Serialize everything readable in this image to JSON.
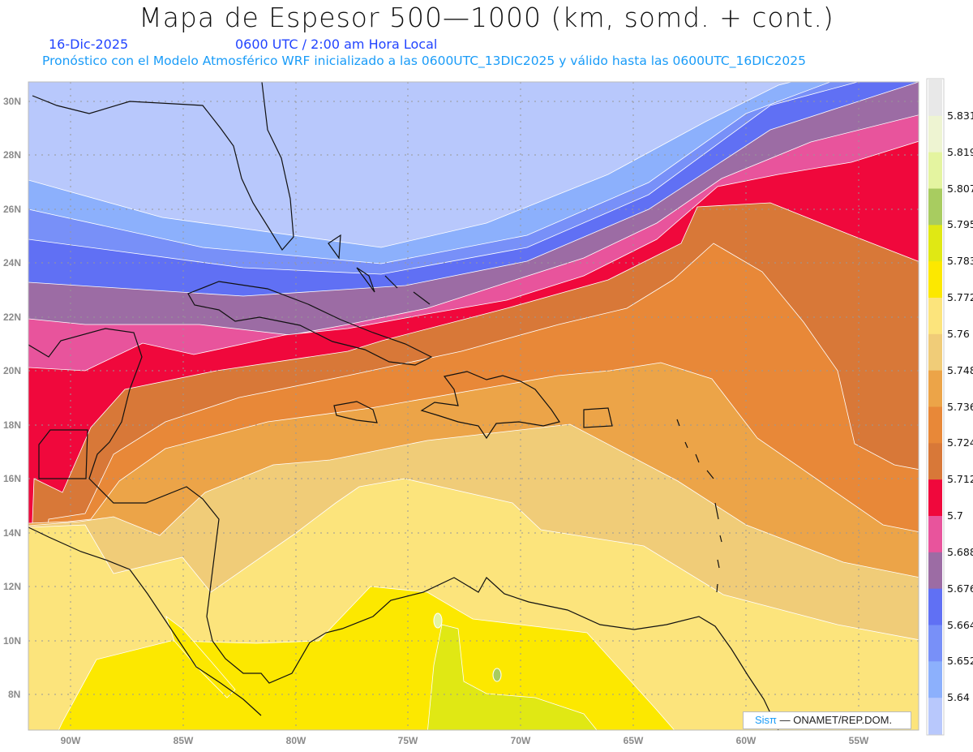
{
  "header": {
    "title": "Mapa de Espesor 500—1000 (km, somd. + cont.)",
    "date": "16-Dic-2025",
    "time": "0600 UTC / 2:00 am Hora Local",
    "forecast_info": "Pronóstico con el Modelo Atmosférico WRF inicializado a las 0600UTC_13DIC2025 y válido hasta las  0600UTC_16DIC2025"
  },
  "axes": {
    "lat_labels": [
      "30N",
      "28N",
      "26N",
      "24N",
      "22N",
      "20N",
      "18N",
      "16N",
      "14N",
      "12N",
      "10N",
      "8N"
    ],
    "lon_labels": [
      "90W",
      "85W",
      "80W",
      "75W",
      "70W",
      "65W",
      "60W",
      "55W"
    ]
  },
  "colorbar": {
    "labels": [
      "5.831",
      "5.819",
      "5.807",
      "5.795",
      "5.783",
      "5.772",
      "5.76",
      "5.748",
      "5.736",
      "5.724",
      "5.712",
      "5.7",
      "5.688",
      "5.676",
      "5.664",
      "5.652",
      "5.64"
    ],
    "colors": [
      "#e8e8e8",
      "#eef4d2",
      "#e4f4a0",
      "#a8cc60",
      "#e0e814",
      "#fce800",
      "#fce47c",
      "#f0cc78",
      "#eca448",
      "#e88838",
      "#d87838",
      "#f0083c",
      "#e8549c",
      "#9c6ca4",
      "#6070f4",
      "#7890f8",
      "#8cb0fc",
      "#b8c8fc"
    ]
  },
  "credit": {
    "logo": "Sisπ",
    "text": "— ONAMET/REP.DOM."
  }
}
